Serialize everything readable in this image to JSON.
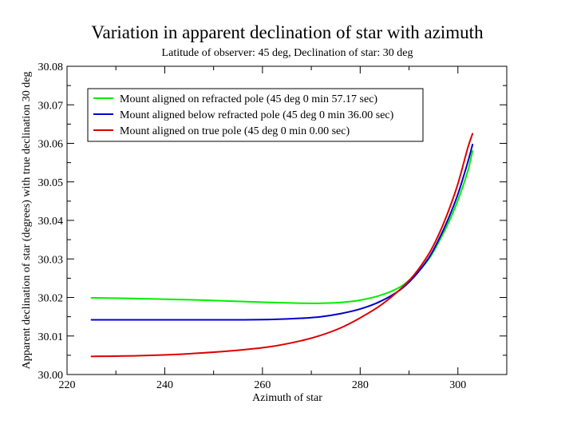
{
  "chart_data": {
    "type": "line",
    "title": "Variation in apparent declination of star with azimuth",
    "subtitle": "Latitude of observer: 45 deg, Declination of star: 30 deg",
    "xlabel": "Azimuth of star",
    "ylabel": "Apparent declination of star (degrees) with true declination 30 deg",
    "xlim": [
      220,
      310
    ],
    "ylim": [
      30.0,
      30.08
    ],
    "xticks": [
      220,
      240,
      260,
      280,
      300
    ],
    "xtick_labels": [
      "220",
      "240",
      "260",
      "280",
      "300"
    ],
    "yticks": [
      30.0,
      30.01,
      30.02,
      30.03,
      30.04,
      30.05,
      30.06,
      30.07,
      30.08
    ],
    "ytick_labels": [
      "30.00",
      "30.01",
      "30.02",
      "30.03",
      "30.04",
      "30.05",
      "30.06",
      "30.07",
      "30.08"
    ],
    "legend_position": "top-left",
    "series": [
      {
        "name": "Mount aligned on refracted pole (45 deg 0 min 57.17 sec)",
        "color": "#00ee00",
        "x": [
          225,
          235,
          245,
          255,
          262,
          268,
          272,
          276,
          280,
          284,
          288,
          291,
          294,
          296,
          298,
          300,
          302,
          303
        ],
        "y": [
          30.0199,
          30.0197,
          30.0194,
          30.019,
          30.0187,
          30.0185,
          30.0185,
          30.0187,
          30.0193,
          30.0205,
          30.0226,
          30.0256,
          30.0299,
          30.0342,
          30.0392,
          30.0452,
          30.0527,
          30.058
        ]
      },
      {
        "name": "Mount aligned below refracted pole (45 deg 0 min 36.00 sec)",
        "color": "#0000cc",
        "x": [
          225,
          235,
          245,
          255,
          262,
          268,
          272,
          276,
          280,
          284,
          288,
          291,
          294,
          296,
          298,
          300,
          302,
          303
        ],
        "y": [
          30.0142,
          30.0142,
          30.0142,
          30.0142,
          30.0143,
          30.0146,
          30.015,
          30.0158,
          30.017,
          30.0189,
          30.0218,
          30.0253,
          30.0302,
          30.0348,
          30.0403,
          30.0468,
          30.055,
          30.0597
        ]
      },
      {
        "name": "Mount aligned on true pole (45 deg 0 min 0.00 sec)",
        "color": "#dd0000",
        "x": [
          225,
          235,
          245,
          255,
          262,
          268,
          272,
          276,
          280,
          284,
          288,
          291,
          294,
          296,
          298,
          300,
          302,
          303
        ],
        "y": [
          30.0047,
          30.0049,
          30.0054,
          30.0063,
          30.0073,
          30.0088,
          30.0102,
          30.0121,
          30.0147,
          30.0178,
          30.0219,
          30.0258,
          30.0312,
          30.0361,
          30.0422,
          30.0495,
          30.0587,
          30.0625
        ]
      }
    ]
  }
}
